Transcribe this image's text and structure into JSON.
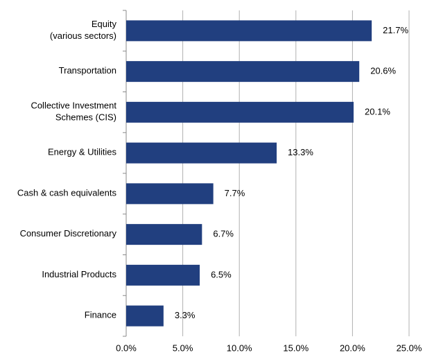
{
  "chart_data": {
    "type": "hbar",
    "categories": [
      "Equity\n(various sectors)",
      "Transportation",
      "Collective Investment\nSchemes (CIS)",
      "Energy & Utilities",
      "Cash & cash equivalents",
      "Consumer Discretionary",
      "Industrial Products",
      "Finance"
    ],
    "values": [
      21.7,
      20.6,
      20.1,
      13.3,
      7.7,
      6.7,
      6.5,
      3.3
    ],
    "value_labels": [
      "21.7%",
      "20.6%",
      "20.1%",
      "13.3%",
      "7.7%",
      "6.7%",
      "6.5%",
      "3.3%"
    ],
    "color": "#213f7f",
    "xlim": [
      0,
      25
    ],
    "xticks": [
      {
        "value": 0,
        "label": "0.0%"
      },
      {
        "value": 5,
        "label": "5.0%"
      },
      {
        "value": 10,
        "label": "10.0%"
      },
      {
        "value": 15,
        "label": "15.0%"
      },
      {
        "value": 20,
        "label": "20.0%"
      },
      {
        "value": 25,
        "label": "25.0%"
      }
    ],
    "grid": true
  }
}
